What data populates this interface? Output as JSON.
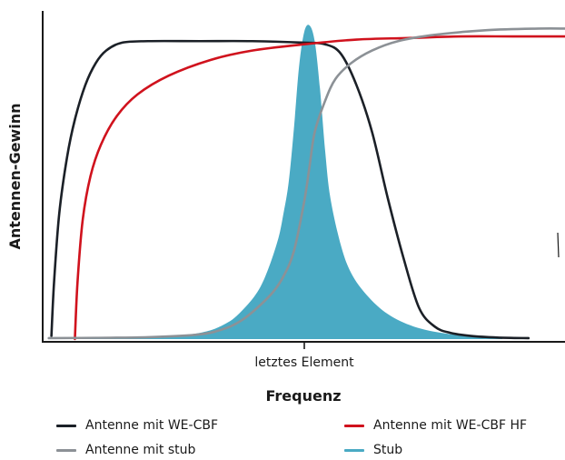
{
  "chart_data": {
    "type": "line",
    "xlabel": "Frequenz",
    "ylabel": "Antennen-Gewinn",
    "x_tick_labels": [
      "letztes Element"
    ],
    "grid": false,
    "legend_position": "bottom",
    "x_unit": "relative frequency (tick at 0.50)",
    "y_unit": "relative gain",
    "xlim": [
      0,
      1
    ],
    "ylim": [
      0,
      1
    ],
    "series": [
      {
        "name": "Antenne mit WE-CBF",
        "color": "#1b2027",
        "style": "line",
        "x": [
          0.015,
          0.02,
          0.03,
          0.045,
          0.06,
          0.08,
          0.1,
          0.12,
          0.15,
          0.2,
          0.3,
          0.4,
          0.5,
          0.54,
          0.57,
          0.6,
          0.63,
          0.66,
          0.69,
          0.72,
          0.75,
          0.78,
          0.82,
          0.87,
          0.93
        ],
        "y": [
          0.01,
          0.18,
          0.4,
          0.58,
          0.7,
          0.81,
          0.88,
          0.92,
          0.945,
          0.95,
          0.95,
          0.95,
          0.945,
          0.94,
          0.91,
          0.81,
          0.66,
          0.45,
          0.26,
          0.1,
          0.04,
          0.02,
          0.01,
          0.005,
          0.003
        ]
      },
      {
        "name": "Antenne mit WE-CBF HF",
        "color": "#d0121d",
        "style": "line",
        "x": [
          0.06,
          0.065,
          0.075,
          0.09,
          0.11,
          0.14,
          0.18,
          0.24,
          0.32,
          0.4,
          0.5,
          0.6,
          0.7,
          0.8,
          0.9,
          1.0
        ],
        "y": [
          0.0,
          0.18,
          0.38,
          0.52,
          0.62,
          0.71,
          0.78,
          0.84,
          0.89,
          0.92,
          0.94,
          0.955,
          0.96,
          0.965,
          0.965,
          0.965
        ]
      },
      {
        "name": "Antenne mit stub",
        "color": "#8c9196",
        "style": "line",
        "x": [
          0.01,
          0.1,
          0.2,
          0.3,
          0.35,
          0.38,
          0.41,
          0.44,
          0.46,
          0.48,
          0.5,
          0.51,
          0.52,
          0.54,
          0.56,
          0.59,
          0.63,
          0.68,
          0.75,
          0.85,
          0.95,
          1.0
        ],
        "y": [
          0.003,
          0.004,
          0.006,
          0.015,
          0.035,
          0.06,
          0.1,
          0.15,
          0.2,
          0.28,
          0.44,
          0.55,
          0.66,
          0.76,
          0.83,
          0.88,
          0.92,
          0.95,
          0.97,
          0.985,
          0.99,
          0.99
        ]
      },
      {
        "name": "Stub",
        "color": "#4aaac4",
        "style": "area",
        "x": [
          0.01,
          0.2,
          0.3,
          0.35,
          0.38,
          0.41,
          0.43,
          0.45,
          0.46,
          0.47,
          0.48,
          0.49,
          0.5,
          0.51,
          0.52,
          0.53,
          0.54,
          0.55,
          0.57,
          0.59,
          0.62,
          0.66,
          0.71,
          0.77,
          0.83,
          0.88
        ],
        "y": [
          0.002,
          0.004,
          0.02,
          0.05,
          0.09,
          0.15,
          0.22,
          0.32,
          0.4,
          0.5,
          0.67,
          0.87,
          0.98,
          1.0,
          0.95,
          0.8,
          0.6,
          0.45,
          0.3,
          0.21,
          0.14,
          0.08,
          0.04,
          0.018,
          0.008,
          0.003
        ]
      }
    ]
  }
}
